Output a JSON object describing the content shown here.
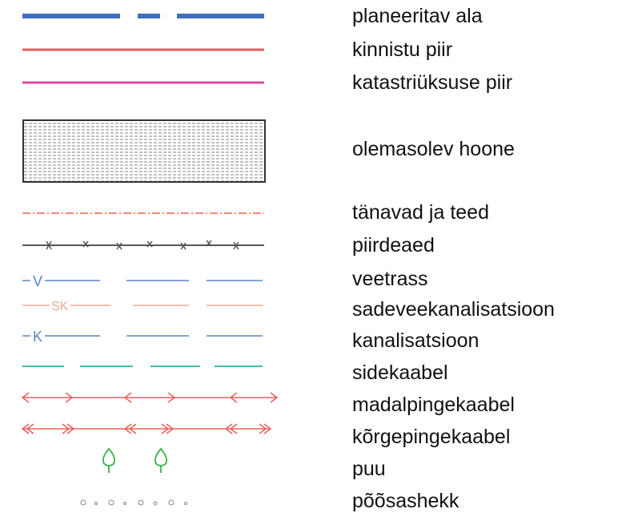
{
  "legend": {
    "items": [
      {
        "id": "planned-area",
        "label": "planeeritav ala",
        "color": "#3f6fbd"
      },
      {
        "id": "property-boundary",
        "label": "kinnistu piir",
        "color": "#e0605f"
      },
      {
        "id": "cadastral-boundary",
        "label": "katastriüksuse piir",
        "color": "#d94aa8"
      },
      {
        "id": "existing-building",
        "label": "olemasolev hoone",
        "color": "#555555"
      },
      {
        "id": "streets-roads",
        "label": "tänavad ja teed",
        "color": "#f08a7a"
      },
      {
        "id": "fences",
        "label": "piirdeaed",
        "color": "#555555"
      },
      {
        "id": "water-pipe",
        "label": "veetrass",
        "color": "#5a84c8",
        "symbol": "V"
      },
      {
        "id": "storm-sewer",
        "label": "sadeveekanalisatsioon",
        "color": "#f0a890",
        "symbol": "SK"
      },
      {
        "id": "sewer",
        "label": "kanalisatsioon",
        "color": "#5a84c8",
        "symbol": "K"
      },
      {
        "id": "comm-cable",
        "label": "sidekaabel",
        "color": "#3bbfa8"
      },
      {
        "id": "low-voltage-cable",
        "label": "madalpingekaabel",
        "color": "#e8605a"
      },
      {
        "id": "high-voltage-cable",
        "label": "kõrgepingekaabel",
        "color": "#e8605a"
      },
      {
        "id": "tree",
        "label": "puu",
        "color": "#3db04a",
        "icon": "tree-icon"
      },
      {
        "id": "hedge",
        "label": "põõsashekk",
        "color": "#888888",
        "icon": "shrub-icon"
      }
    ]
  }
}
